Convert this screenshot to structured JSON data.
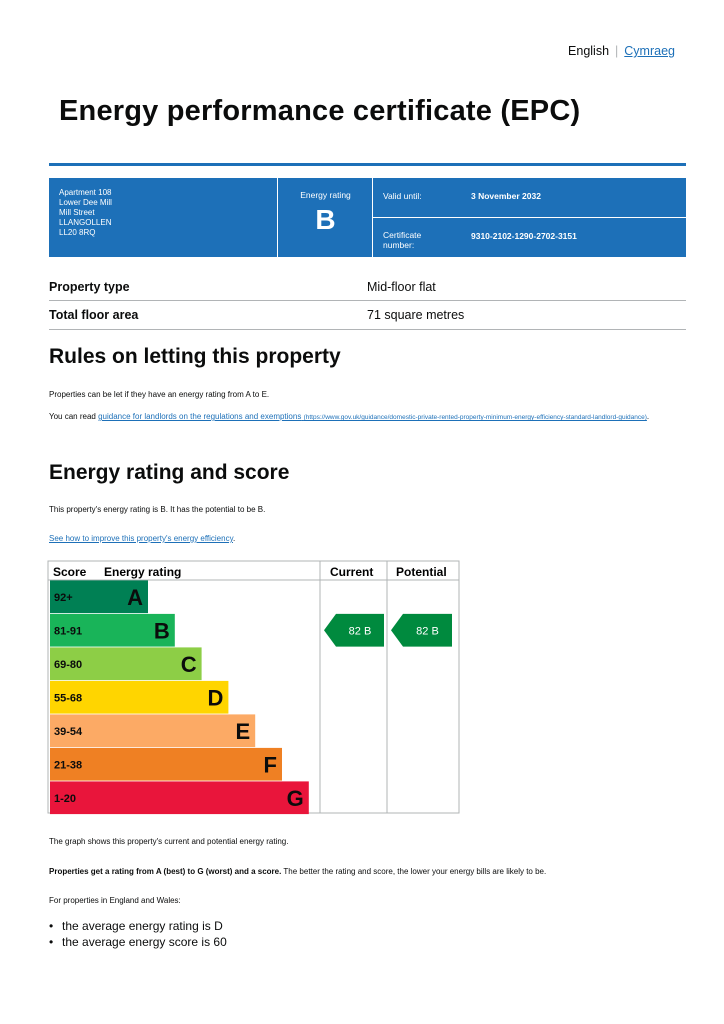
{
  "language": {
    "current": "English",
    "alternate": "Cymraeg"
  },
  "title": "Energy performance certificate (EPC)",
  "certificate": {
    "address_lines": [
      "Apartment 108",
      "Lower Dee Mill",
      "Mill Street",
      "LLANGOLLEN",
      "LL20 8RQ"
    ],
    "energy_rating_label": "Energy rating",
    "energy_rating": "B",
    "valid_until_label": "Valid until:",
    "valid_until": "3 November 2032",
    "certificate_number_label": "Certificate number:",
    "certificate_number": "9310-2102-1290-2702-3151"
  },
  "summary": [
    {
      "label": "Property type",
      "value": "Mid-floor flat"
    },
    {
      "label": "Total floor area",
      "value": "71 square metres"
    }
  ],
  "letting": {
    "heading": "Rules on letting this property",
    "text1": "Properties can be let if they have an energy rating from A to E.",
    "text2_prefix": "You can read ",
    "link_text": "guidance for landlords on the regulations and exemptions",
    "link_url": "(https://www.gov.uk/guidance/domestic-private-rented-property-minimum-energy-efficiency-standard-landlord-guidance)",
    "text2_suffix": "."
  },
  "rating_section": {
    "heading": "Energy rating and score",
    "text": "This property's energy rating is B. It has the potential to be B.",
    "link_text": "See how to improve this property's energy efficiency",
    "link_suffix": "."
  },
  "chart_data": {
    "type": "bar",
    "headers": {
      "score": "Score",
      "rating": "Energy rating",
      "current": "Current",
      "potential": "Potential"
    },
    "bands": [
      {
        "letter": "A",
        "score": "92+",
        "color": "#008054"
      },
      {
        "letter": "B",
        "score": "81-91",
        "color": "#19b459"
      },
      {
        "letter": "C",
        "score": "69-80",
        "color": "#8dce46"
      },
      {
        "letter": "D",
        "score": "55-68",
        "color": "#ffd500"
      },
      {
        "letter": "E",
        "score": "39-54",
        "color": "#fcaa65"
      },
      {
        "letter": "F",
        "score": "21-38",
        "color": "#ef8023"
      },
      {
        "letter": "G",
        "score": "1-20",
        "color": "#e9153b"
      }
    ],
    "current": {
      "score": 82,
      "letter": "B",
      "label": "82 B"
    },
    "potential": {
      "score": 82,
      "letter": "B",
      "label": "82 B"
    }
  },
  "after_chart": {
    "text1": "The graph shows this property's current and potential energy rating.",
    "text2_bold": "Properties get a rating from A (best) to G (worst) and a score.",
    "text2_rest": " The better the rating and score, the lower your energy bills are likely to be.",
    "text3": "For properties in England and Wales:",
    "bullets": [
      "the average energy rating is D",
      "the average energy score is 60"
    ]
  }
}
